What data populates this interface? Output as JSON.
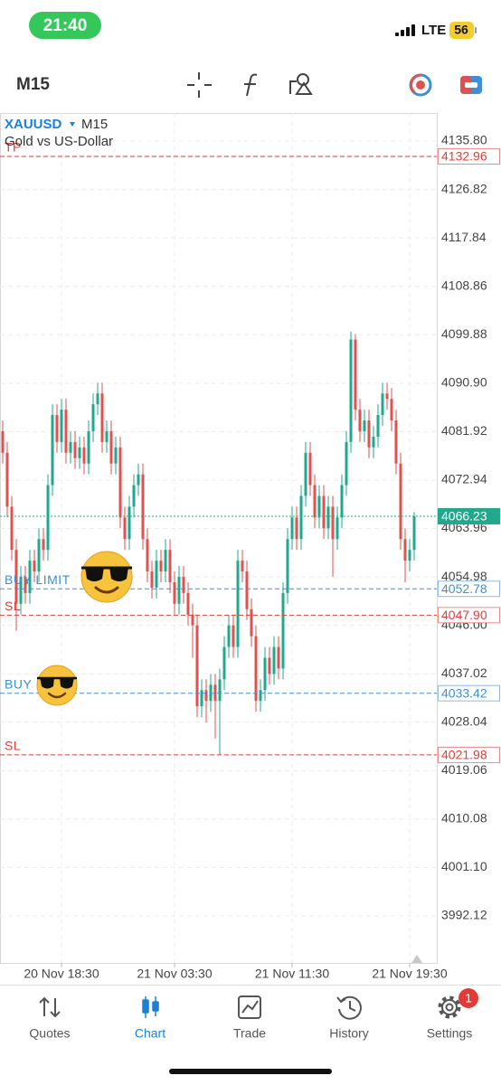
{
  "status_bar": {
    "time": "21:40",
    "network": "LTE",
    "battery": "56"
  },
  "toolbar": {
    "timeframe": "M15"
  },
  "chart": {
    "type": "candlestick",
    "symbol": "XAUUSD",
    "timeframe": "M15",
    "description": "Gold vs US-Dollar",
    "up_color": "#22a88c",
    "down_color": "#e0524f",
    "grid": true,
    "ylim": [
      3983.41,
      4141.0
    ],
    "yticks": [
      {
        "value": 4135.8,
        "label": "4135.80"
      },
      {
        "value": 4126.82,
        "label": "4126.82"
      },
      {
        "value": 4117.84,
        "label": "4117.84"
      },
      {
        "value": 4108.86,
        "label": "4108.86"
      },
      {
        "value": 4099.88,
        "label": "4099.88"
      },
      {
        "value": 4090.9,
        "label": "4090.90"
      },
      {
        "value": 4081.92,
        "label": "4081.92"
      },
      {
        "value": 4072.94,
        "label": "4072.94"
      },
      {
        "value": 4063.96,
        "label": "4063.96"
      },
      {
        "value": 4054.98,
        "label": "4054.98"
      },
      {
        "value": 4046.0,
        "label": "4046.00"
      },
      {
        "value": 4037.02,
        "label": "4037.02"
      },
      {
        "value": 4028.04,
        "label": "4028.04"
      },
      {
        "value": 4019.06,
        "label": "4019.06"
      },
      {
        "value": 4010.08,
        "label": "4010.08"
      },
      {
        "value": 4001.1,
        "label": "4001.10"
      },
      {
        "value": 3992.12,
        "label": "3992.12"
      }
    ],
    "xticks": [
      {
        "value": 13,
        "label": "20 Nov 18:30"
      },
      {
        "value": 38,
        "label": "21 Nov 03:30"
      },
      {
        "value": 64,
        "label": "21 Nov 11:30"
      },
      {
        "value": 90,
        "label": "21 Nov 19:30"
      }
    ],
    "current_price": 4066.23,
    "levels": [
      {
        "label": "TP",
        "price": 4132.96,
        "price_label": "4132.96",
        "color": "#d9413a"
      },
      {
        "label": "BUY LIMIT",
        "price": 4052.78,
        "price_label": "4052.78",
        "color": "#3d8fd8"
      },
      {
        "label": "SL",
        "price": 4047.9,
        "price_label": "4047.90",
        "color": "#d9413a"
      },
      {
        "label": "BUY",
        "price": 4033.42,
        "price_label": "4033.42",
        "color": "#3d8fd8"
      },
      {
        "label": "SL",
        "price": 4021.98,
        "price_label": "4021.98",
        "color": "#d9413a"
      }
    ],
    "candles": [
      [
        4082,
        4084,
        4076,
        4078
      ],
      [
        4078,
        4080,
        4066,
        4068
      ],
      [
        4068,
        4070,
        4058,
        4060
      ],
      [
        4060,
        4062,
        4045,
        4050
      ],
      [
        4050,
        4057,
        4048,
        4055
      ],
      [
        4055,
        4057,
        4050,
        4052
      ],
      [
        4052,
        4060,
        4050,
        4058
      ],
      [
        4058,
        4060,
        4054,
        4056
      ],
      [
        4056,
        4064,
        4054,
        4062
      ],
      [
        4062,
        4064,
        4058,
        4060
      ],
      [
        4060,
        4074,
        4058,
        4072
      ],
      [
        4072,
        4087,
        4070,
        4085
      ],
      [
        4085,
        4087,
        4078,
        4080
      ],
      [
        4080,
        4088,
        4078,
        4086
      ],
      [
        4086,
        4088,
        4076,
        4078
      ],
      [
        4078,
        4082,
        4076,
        4080
      ],
      [
        4080,
        4082,
        4075,
        4077
      ],
      [
        4077,
        4081,
        4075,
        4079
      ],
      [
        4079,
        4081,
        4074,
        4076
      ],
      [
        4076,
        4084,
        4074,
        4082
      ],
      [
        4082,
        4089,
        4080,
        4087
      ],
      [
        4087,
        4091,
        4085,
        4089
      ],
      [
        4089,
        4091,
        4078,
        4080
      ],
      [
        4080,
        4084,
        4078,
        4082
      ],
      [
        4082,
        4084,
        4074,
        4076
      ],
      [
        4076,
        4081,
        4074,
        4079
      ],
      [
        4079,
        4081,
        4064,
        4066
      ],
      [
        4066,
        4068,
        4060,
        4062
      ],
      [
        4062,
        4070,
        4060,
        4068
      ],
      [
        4068,
        4074,
        4066,
        4072
      ],
      [
        4072,
        4076,
        4070,
        4074
      ],
      [
        4074,
        4076,
        4060,
        4062
      ],
      [
        4062,
        4064,
        4054,
        4056
      ],
      [
        4056,
        4058,
        4051,
        4053
      ],
      [
        4053,
        4060,
        4051,
        4058
      ],
      [
        4058,
        4060,
        4054,
        4056
      ],
      [
        4056,
        4062,
        4054,
        4060
      ],
      [
        4060,
        4062,
        4052,
        4054
      ],
      [
        4054,
        4056,
        4048,
        4050
      ],
      [
        4050,
        4057,
        4048,
        4055
      ],
      [
        4055,
        4057,
        4050,
        4052
      ],
      [
        4052,
        4054,
        4046,
        4048
      ],
      [
        4048,
        4050,
        4040,
        4046
      ],
      [
        4046,
        4048,
        4029,
        4031
      ],
      [
        4031,
        4036,
        4029,
        4034
      ],
      [
        4034,
        4036,
        4028,
        4032
      ],
      [
        4032,
        4037,
        4030,
        4035
      ],
      [
        4035,
        4037,
        4025,
        4032
      ],
      [
        4032,
        4038,
        4022,
        4036
      ],
      [
        4036,
        4044,
        4034,
        4042
      ],
      [
        4042,
        4048,
        4040,
        4046
      ],
      [
        4046,
        4048,
        4040,
        4042
      ],
      [
        4042,
        4060,
        4040,
        4058
      ],
      [
        4058,
        4060,
        4054,
        4056
      ],
      [
        4056,
        4058,
        4047,
        4049
      ],
      [
        4049,
        4051,
        4042,
        4044
      ],
      [
        4044,
        4046,
        4030,
        4032
      ],
      [
        4032,
        4036,
        4030,
        4034
      ],
      [
        4034,
        4042,
        4032,
        4040
      ],
      [
        4040,
        4042,
        4035,
        4037
      ],
      [
        4037,
        4044,
        4035,
        4042
      ],
      [
        4042,
        4044,
        4036,
        4038
      ],
      [
        4038,
        4054,
        4036,
        4052
      ],
      [
        4052,
        4064,
        4050,
        4062
      ],
      [
        4062,
        4068,
        4060,
        4066
      ],
      [
        4066,
        4068,
        4060,
        4062
      ],
      [
        4062,
        4072,
        4060,
        4070
      ],
      [
        4070,
        4080,
        4068,
        4078
      ],
      [
        4078,
        4080,
        4070,
        4072
      ],
      [
        4072,
        4074,
        4064,
        4066
      ],
      [
        4066,
        4072,
        4064,
        4070
      ],
      [
        4070,
        4072,
        4062,
        4064
      ],
      [
        4064,
        4070,
        4062,
        4068
      ],
      [
        4068,
        4070,
        4055,
        4062
      ],
      [
        4062,
        4068,
        4060,
        4066
      ],
      [
        4066,
        4074,
        4064,
        4072
      ],
      [
        4072,
        4082,
        4070,
        4080
      ],
      [
        4080,
        4100.5,
        4078,
        4099
      ],
      [
        4099,
        4100,
        4084,
        4086
      ],
      [
        4086,
        4088,
        4080,
        4082
      ],
      [
        4082,
        4086,
        4080,
        4084
      ],
      [
        4084,
        4086,
        4077,
        4079
      ],
      [
        4079,
        4083,
        4077,
        4081
      ],
      [
        4081,
        4087,
        4079,
        4085
      ],
      [
        4085,
        4091,
        4083,
        4089
      ],
      [
        4089,
        4091,
        4086,
        4088
      ],
      [
        4088,
        4090,
        4082,
        4084
      ],
      [
        4084,
        4086,
        4074,
        4076
      ],
      [
        4076,
        4078,
        4060,
        4062
      ],
      [
        4062,
        4064,
        4054,
        4058
      ],
      [
        4058,
        4062,
        4056,
        4060
      ],
      [
        4060,
        4067,
        4058,
        4066.23
      ]
    ]
  },
  "nav": {
    "items": [
      "Quotes",
      "Chart",
      "Trade",
      "History",
      "Settings"
    ],
    "settings_badge": 1
  }
}
